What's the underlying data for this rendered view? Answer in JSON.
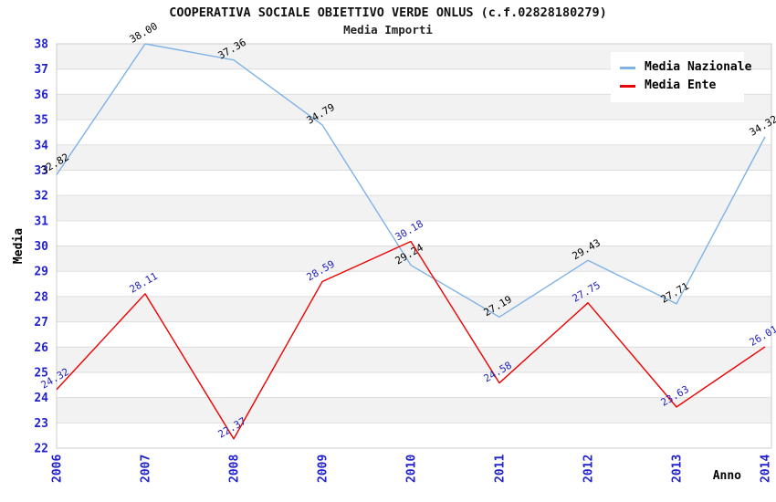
{
  "chart_data": {
    "type": "line",
    "title": "COOPERATIVA SOCIALE OBIETTIVO VERDE ONLUS (c.f.02828180279)",
    "subtitle": "Media Importi",
    "xlabel": "Anno",
    "ylabel": "Media",
    "x": [
      2006,
      2007,
      2008,
      2009,
      2010,
      2011,
      2012,
      2013,
      2014
    ],
    "series": [
      {
        "name": "Media Nazionale",
        "color": "#7FB2E8",
        "label_color": "#000000",
        "values": [
          32.82,
          38.0,
          37.36,
          34.79,
          29.24,
          27.19,
          29.43,
          27.71,
          34.32
        ]
      },
      {
        "name": "Media Ente",
        "color": "#EE0000",
        "label_color": "#2222BB",
        "values": [
          24.32,
          28.11,
          22.37,
          28.59,
          30.18,
          24.58,
          27.75,
          23.63,
          26.01
        ]
      }
    ],
    "ylim": [
      22,
      38
    ],
    "ytick_step": 1,
    "grid": "horizontal",
    "banding": true,
    "legend_position": "top-right",
    "value_label_decimals": 2,
    "colors": {
      "tick_label": "#2222CC",
      "axis_title": "#000000",
      "band": "#F2F2F2",
      "gridline": "#DDDDDD",
      "border": "#CCCCCC",
      "background": "#FFFFFF"
    }
  }
}
